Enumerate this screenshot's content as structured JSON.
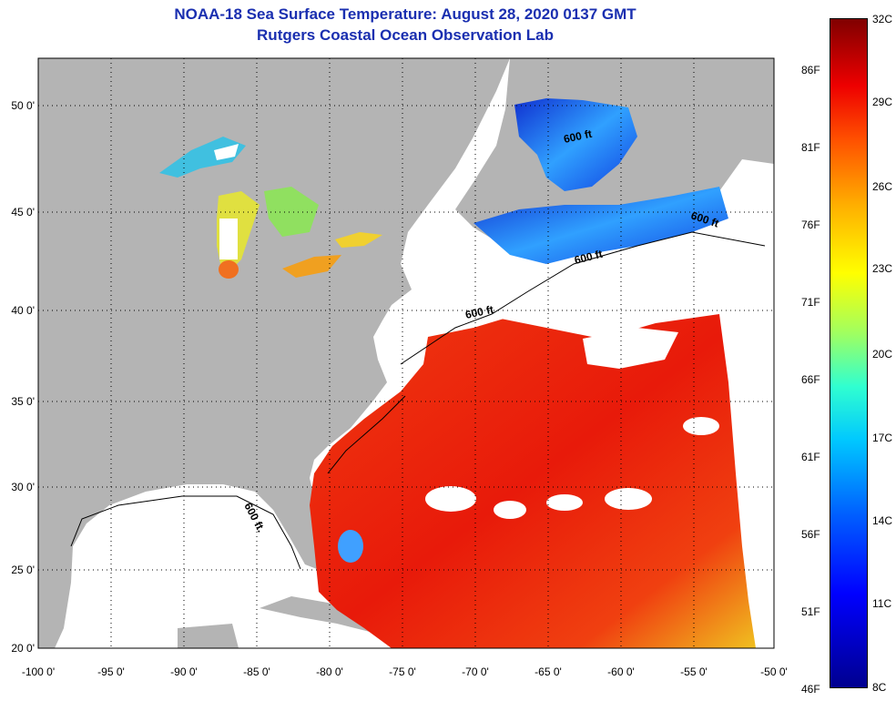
{
  "title": {
    "line1": "NOAA-18 Sea Surface Temperature:  August 28, 2020 0137 GMT",
    "line2": "Rutgers Coastal Ocean Observation Lab"
  },
  "map": {
    "lat_ticks": [
      "50 0'",
      "45 0'",
      "40 0'",
      "35 0'",
      "30 0'",
      "25 0'",
      "20 0'"
    ],
    "lon_ticks": [
      "-100 0'",
      "-95 0'",
      "-90 0'",
      "-85 0'",
      "-80 0'",
      "-75 0'",
      "-70 0'",
      "-65 0'",
      "-60 0'",
      "-55 0'",
      "-50 0'"
    ],
    "contour_labels": [
      "600 ft",
      "600 ft",
      "600 ft",
      "600 ft",
      "600 ft."
    ]
  },
  "colorbar": {
    "fahrenheit": [
      "86F",
      "81F",
      "76F",
      "71F",
      "66F",
      "61F",
      "56F",
      "51F",
      "46F"
    ],
    "celsius": [
      "32C",
      "29C",
      "26C",
      "23C",
      "20C",
      "17C",
      "14C",
      "11C",
      "8C"
    ]
  },
  "colors": {
    "land": "#b4b4b4",
    "cloud": "#ffffff",
    "warm_water": "#ee1c0e",
    "cold_water": "#1040e0",
    "title": "#1a2fb0"
  }
}
